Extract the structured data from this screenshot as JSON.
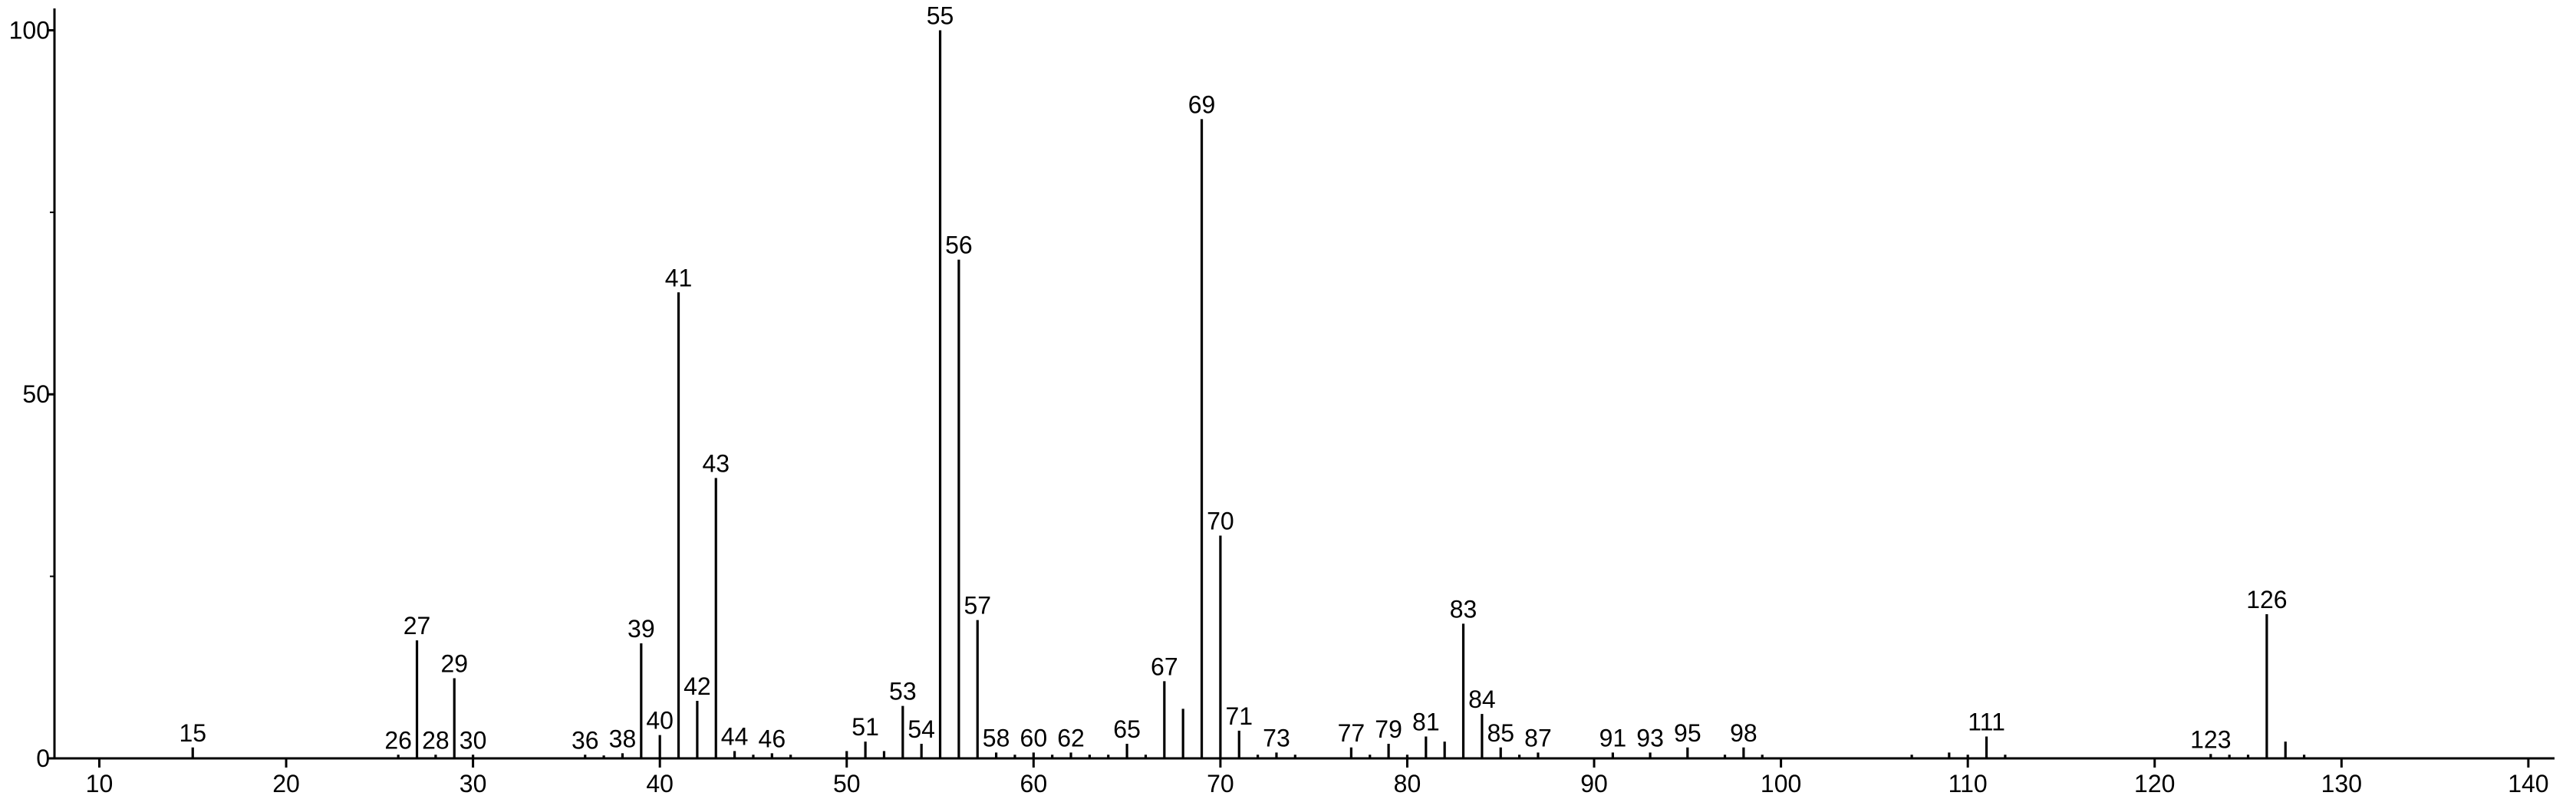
{
  "chart_data": {
    "type": "stick",
    "color": "#000000",
    "x": [
      15,
      26,
      27,
      28,
      29,
      30,
      36,
      37,
      38,
      39,
      40,
      41,
      42,
      43,
      44,
      45,
      46,
      47,
      50,
      51,
      52,
      53,
      54,
      55,
      56,
      57,
      58,
      59,
      60,
      61,
      62,
      63,
      64,
      65,
      66,
      67,
      68,
      69,
      70,
      71,
      72,
      73,
      74,
      77,
      78,
      79,
      80,
      81,
      82,
      83,
      84,
      85,
      86,
      87,
      91,
      93,
      95,
      97,
      98,
      99,
      107,
      109,
      110,
      111,
      112,
      123,
      124,
      125,
      126,
      127,
      128
    ],
    "values": [
      1.5,
      0.5,
      16.2,
      0.5,
      11,
      0.5,
      0.5,
      0.4,
      0.7,
      15.8,
      3.2,
      64,
      7.9,
      38.5,
      1,
      0.5,
      0.7,
      0.5,
      1,
      2.3,
      1,
      7.2,
      2,
      100,
      68.5,
      19,
      0.8,
      0.5,
      0.8,
      0.5,
      0.8,
      0.5,
      0.5,
      2,
      0.5,
      10.6,
      6.8,
      87.8,
      30.6,
      3.8,
      0.5,
      0.8,
      0.5,
      1.5,
      0.5,
      2,
      0.5,
      3,
      2.3,
      18.5,
      6.1,
      1.5,
      0.5,
      0.8,
      0.8,
      0.8,
      1.5,
      0.5,
      1.5,
      0.5,
      0.5,
      0.8,
      0.5,
      3,
      0.5,
      0.6,
      0.5,
      0.5,
      19.8,
      2.3,
      0.5
    ],
    "labels": [
      15,
      26,
      27,
      28,
      29,
      30,
      36,
      null,
      38,
      39,
      40,
      41,
      42,
      43,
      44,
      null,
      46,
      null,
      null,
      51,
      null,
      53,
      54,
      55,
      56,
      57,
      58,
      null,
      60,
      null,
      62,
      null,
      null,
      65,
      null,
      67,
      null,
      69,
      70,
      71,
      null,
      73,
      null,
      77,
      null,
      79,
      null,
      81,
      null,
      83,
      84,
      85,
      null,
      87,
      91,
      93,
      95,
      null,
      98,
      null,
      null,
      null,
      null,
      111,
      null,
      123,
      null,
      null,
      126,
      null,
      null
    ],
    "xlim": [
      7.6,
      141.4
    ],
    "xticks": [
      10,
      20,
      30,
      40,
      50,
      60,
      70,
      80,
      90,
      100,
      110,
      120,
      130,
      140
    ],
    "ylim": [
      0,
      103
    ],
    "yticks": [
      0,
      50,
      100
    ],
    "yminor": [
      25,
      75
    ]
  }
}
